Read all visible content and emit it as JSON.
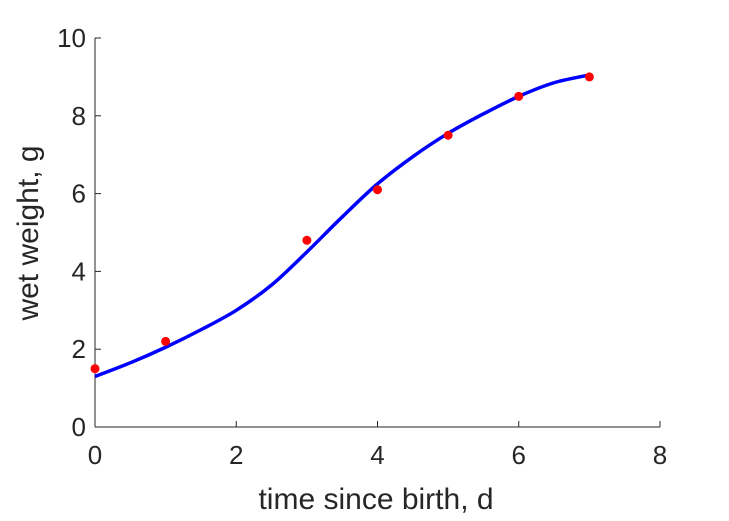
{
  "chart_data": {
    "type": "line",
    "title": "",
    "xlabel": "time since birth, d",
    "ylabel": "wet weight, g",
    "xlim": [
      0,
      8
    ],
    "ylim": [
      0,
      10
    ],
    "xticks": [
      0,
      2,
      4,
      6,
      8
    ],
    "yticks": [
      0,
      2,
      4,
      6,
      8,
      10
    ],
    "grid": false,
    "box": false,
    "series": [
      {
        "kind": "line",
        "color": "#0000ff",
        "x": [
          0,
          0.5,
          1,
          1.5,
          2,
          2.5,
          3,
          3.5,
          4,
          4.5,
          5,
          5.5,
          6,
          6.5,
          7
        ],
        "y": [
          1.3,
          1.65,
          2.05,
          2.5,
          3.0,
          3.65,
          4.5,
          5.4,
          6.25,
          6.95,
          7.55,
          8.05,
          8.5,
          8.85,
          9.05
        ]
      },
      {
        "kind": "scatter",
        "color": "#ff0000",
        "x": [
          0,
          1,
          3,
          4,
          5,
          6,
          7
        ],
        "y": [
          1.5,
          2.2,
          4.8,
          6.1,
          7.5,
          8.5,
          9.0
        ]
      }
    ]
  }
}
